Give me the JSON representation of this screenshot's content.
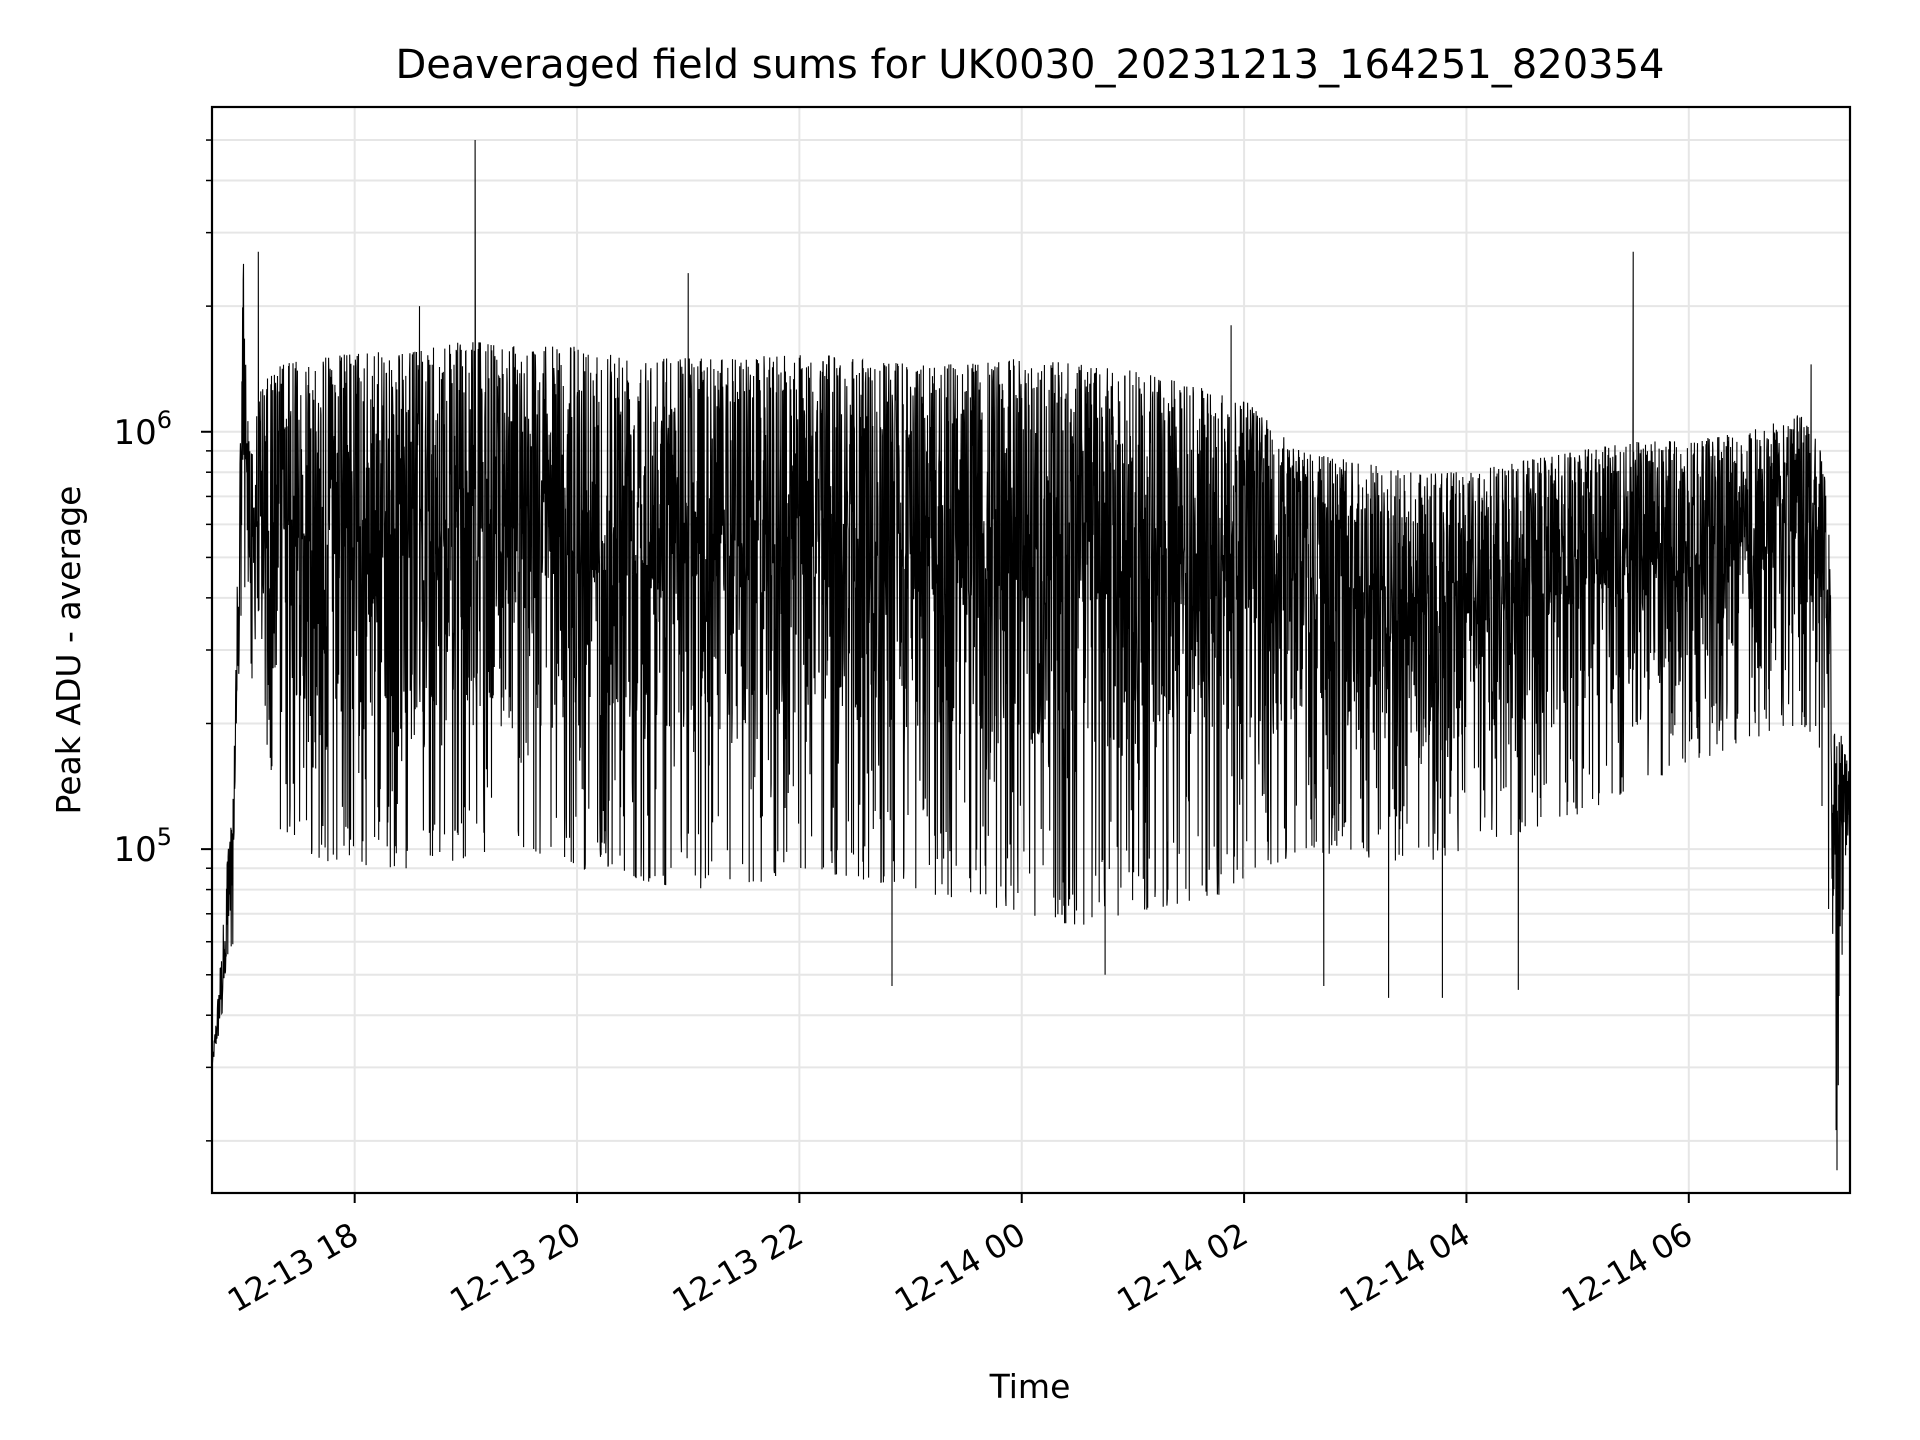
{
  "chart_data": {
    "type": "line",
    "title": "Deaveraged field sums for UK0030_20231213_164251_820354",
    "xlabel": "Time",
    "ylabel": "Peak ADU - average",
    "yscale": "log",
    "xlim": [
      "2023-12-13 16:43",
      "2023-12-14 07:27"
    ],
    "ylim": [
      15000,
      6000000
    ],
    "grid": true,
    "line_color": "#000000",
    "grid_color": "#e6e6e6",
    "x_ticks": [
      "12-13 18",
      "12-13 20",
      "12-13 22",
      "12-14 00",
      "12-14 02",
      "12-14 04",
      "12-14 06"
    ],
    "x_tick_times": [
      "2023-12-13 18:00",
      "2023-12-13 20:00",
      "2023-12-13 22:00",
      "2023-12-14 00:00",
      "2023-12-14 02:00",
      "2023-12-14 04:00",
      "2023-12-14 06:00"
    ],
    "y_ticks": [
      {
        "value": 100000,
        "base": "10",
        "exp": "5"
      },
      {
        "value": 1000000,
        "base": "10",
        "exp": "6"
      }
    ],
    "series": [
      {
        "x": [
          "2023-12-13 16:43",
          "2023-12-13 16:50",
          "2023-12-13 16:55",
          "2023-12-13 16:58",
          "2023-12-13 17:00",
          "2023-12-13 17:02",
          "2023-12-13 17:05",
          "2023-12-13 17:10",
          "2023-12-13 17:20",
          "2023-12-13 17:40",
          "2023-12-13 18:00",
          "2023-12-13 18:30",
          "2023-12-13 19:00",
          "2023-12-13 19:30",
          "2023-12-13 20:00",
          "2023-12-13 20:30",
          "2023-12-13 21:00",
          "2023-12-13 21:30",
          "2023-12-13 22:00",
          "2023-12-13 22:30",
          "2023-12-13 23:00",
          "2023-12-13 23:30",
          "2023-12-14 00:00",
          "2023-12-14 00:30",
          "2023-12-14 01:00",
          "2023-12-14 01:30",
          "2023-12-14 02:00",
          "2023-12-14 02:30",
          "2023-12-14 03:00",
          "2023-12-14 03:30",
          "2023-12-14 04:00",
          "2023-12-14 04:30",
          "2023-12-14 05:00",
          "2023-12-14 05:30",
          "2023-12-14 06:00",
          "2023-12-14 06:30",
          "2023-12-14 07:00",
          "2023-12-14 07:10",
          "2023-12-14 07:15",
          "2023-12-14 07:18",
          "2023-12-14 07:20",
          "2023-12-14 07:24",
          "2023-12-14 07:27"
        ],
        "max": [
          30000,
          75000,
          180000,
          900000,
          2600000,
          1100000,
          1000000,
          1300000,
          1450000,
          1500000,
          1550000,
          1550000,
          1650000,
          1600000,
          1600000,
          1550000,
          1500000,
          1500000,
          1550000,
          1500000,
          1450000,
          1450000,
          1500000,
          1450000,
          1400000,
          1300000,
          1200000,
          900000,
          850000,
          800000,
          800000,
          850000,
          900000,
          950000,
          950000,
          1000000,
          1100000,
          950000,
          700000,
          250000,
          200000,
          180000,
          150000
        ],
        "min": [
          30000,
          40000,
          55000,
          200000,
          450000,
          300000,
          250000,
          150000,
          110000,
          95000,
          90000,
          90000,
          95000,
          100000,
          90000,
          85000,
          80000,
          80000,
          90000,
          85000,
          80000,
          75000,
          70000,
          65000,
          70000,
          75000,
          80000,
          100000,
          95000,
          90000,
          100000,
          110000,
          120000,
          140000,
          160000,
          180000,
          200000,
          180000,
          70000,
          25000,
          18000,
          90000,
          120000
        ],
        "spikes": [
          {
            "x": "2023-12-13 17:08",
            "y": 2700000
          },
          {
            "x": "2023-12-13 19:05",
            "y": 5000000
          },
          {
            "x": "2023-12-13 18:35",
            "y": 2000000
          },
          {
            "x": "2023-12-13 21:00",
            "y": 2400000
          },
          {
            "x": "2023-12-14 01:53",
            "y": 1800000
          },
          {
            "x": "2023-12-14 05:30",
            "y": 2700000
          },
          {
            "x": "2023-12-14 07:06",
            "y": 1450000
          }
        ],
        "dips": [
          {
            "x": "2023-12-13 22:50",
            "y": 47000
          },
          {
            "x": "2023-12-14 00:45",
            "y": 50000
          },
          {
            "x": "2023-12-14 02:43",
            "y": 47000
          },
          {
            "x": "2023-12-14 03:18",
            "y": 44000
          },
          {
            "x": "2023-12-14 03:47",
            "y": 44000
          },
          {
            "x": "2023-12-14 04:28",
            "y": 46000
          },
          {
            "x": "2023-12-14 07:20",
            "y": 17000
          }
        ]
      }
    ]
  }
}
